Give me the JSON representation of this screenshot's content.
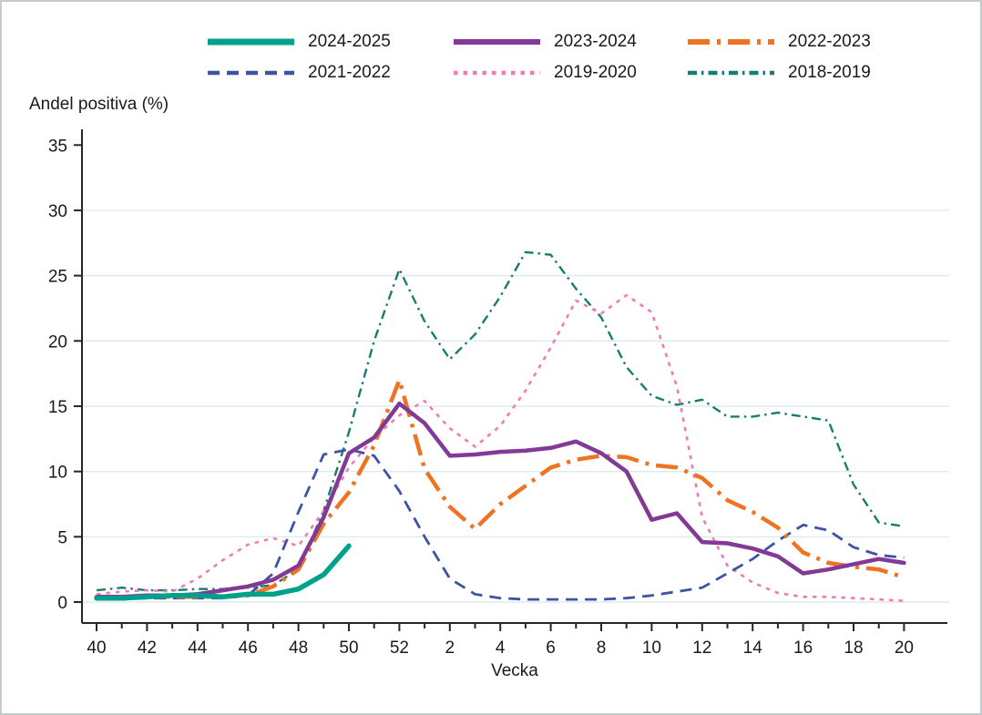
{
  "figure": {
    "y_axis_title": "Andel positiva (%)",
    "x_axis_title": "Vecka"
  },
  "chart_data": {
    "type": "line",
    "title": "",
    "ylabel": "Andel positiva (%)",
    "xlabel": "Vecka",
    "ylim": [
      0,
      35
    ],
    "y_ticks": [
      0,
      5,
      10,
      15,
      20,
      25,
      30,
      35
    ],
    "gridlines_at": [
      0,
      5,
      10,
      15,
      20,
      25,
      30
    ],
    "grid": "horizontal only",
    "legend_position": "top",
    "x_tick_labels": [
      "40",
      "42",
      "44",
      "46",
      "48",
      "50",
      "52",
      "2",
      "4",
      "6",
      "8",
      "10",
      "12",
      "14",
      "16",
      "18",
      "20"
    ],
    "weeks": [
      40,
      41,
      42,
      43,
      44,
      45,
      46,
      47,
      48,
      49,
      50,
      51,
      52,
      1,
      2,
      3,
      4,
      5,
      6,
      7,
      8,
      9,
      10,
      11,
      12,
      13,
      14,
      15,
      16,
      17,
      18,
      19,
      20
    ],
    "series": [
      {
        "name": "2024-2025",
        "color": "#00A18A",
        "line_style": "solid",
        "line_width": 5.5,
        "values": [
          0.3,
          0.3,
          0.4,
          0.5,
          0.5,
          0.4,
          0.6,
          0.6,
          1.0,
          2.1,
          4.3
        ]
      },
      {
        "name": "2023-2024",
        "color": "#833996",
        "line_style": "solid",
        "line_width": 4.5,
        "values": [
          0.4,
          0.4,
          0.5,
          0.5,
          0.6,
          0.9,
          1.2,
          1.7,
          2.8,
          6.5,
          11.4,
          12.6,
          15.2,
          13.7,
          11.2,
          11.3,
          11.5,
          11.6,
          11.8,
          12.3,
          11.4,
          10.0,
          6.3,
          6.8,
          4.6,
          4.5,
          4.1,
          3.5,
          2.2,
          2.5,
          2.9,
          3.3,
          3.0
        ]
      },
      {
        "name": "2022-2023",
        "color": "#EE7423",
        "line_style": "dash-dot",
        "line_width": 4.5,
        "values": [
          0.3,
          0.3,
          0.4,
          0.4,
          0.4,
          0.4,
          0.5,
          1.2,
          2.5,
          6.0,
          8.4,
          12.0,
          17.0,
          10.2,
          7.3,
          5.6,
          7.5,
          8.9,
          10.3,
          10.9,
          11.2,
          11.1,
          10.5,
          10.3,
          9.5,
          7.8,
          6.9,
          5.7,
          3.8,
          3.0,
          2.7,
          2.5,
          1.9
        ]
      },
      {
        "name": "2021-2022",
        "color": "#3E53A4",
        "line_style": "dashed",
        "line_width": 2.8,
        "values": [
          0.2,
          0.2,
          0.3,
          0.3,
          0.3,
          0.3,
          0.5,
          2.2,
          6.9,
          11.3,
          11.7,
          11.2,
          8.5,
          5.0,
          1.8,
          0.6,
          0.3,
          0.2,
          0.2,
          0.2,
          0.2,
          0.3,
          0.5,
          0.8,
          1.1,
          2.2,
          3.3,
          4.7,
          5.9,
          5.5,
          4.2,
          3.6,
          3.4
        ]
      },
      {
        "name": "2019-2020",
        "color": "#F07CB4",
        "line_style": "dotted",
        "line_width": 2.6,
        "values": [
          0.6,
          0.8,
          0.9,
          0.8,
          1.8,
          3.2,
          4.4,
          4.9,
          4.3,
          7.0,
          10.3,
          12.6,
          14.3,
          15.4,
          13.3,
          11.9,
          13.5,
          16.2,
          19.5,
          23.1,
          22.1,
          23.5,
          22.2,
          16.5,
          6.5,
          2.8,
          1.5,
          0.7,
          0.4,
          0.4,
          0.3,
          0.2,
          0.1
        ]
      },
      {
        "name": "2018-2019",
        "color": "#177E6F",
        "line_style": "dash-dot-dot",
        "line_width": 2.4,
        "values": [
          0.9,
          1.1,
          0.9,
          0.9,
          1.0,
          1.0,
          1.1,
          1.3,
          2.5,
          7.0,
          13.0,
          20.0,
          25.5,
          21.5,
          18.6,
          20.5,
          23.4,
          26.8,
          26.6,
          24.0,
          21.8,
          18.0,
          15.8,
          15.1,
          15.5,
          14.2,
          14.2,
          14.5,
          14.2,
          13.9,
          9.0,
          6.1,
          5.8
        ]
      }
    ]
  }
}
